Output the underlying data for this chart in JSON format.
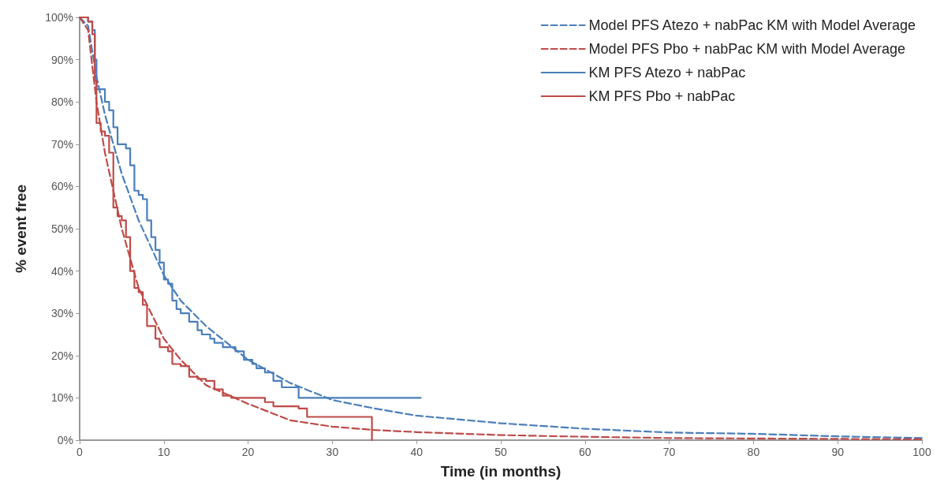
{
  "chart_data": {
    "type": "line",
    "xlabel": "Time (in months)",
    "ylabel": "% event free",
    "xlim": [
      0,
      100
    ],
    "xticks": [
      0,
      10,
      20,
      30,
      40,
      50,
      60,
      70,
      80,
      90,
      100
    ],
    "ylim": [
      0,
      100
    ],
    "yticks": [
      {
        "value": 0,
        "label": "0%"
      },
      {
        "value": 10,
        "label": "10%"
      },
      {
        "value": 20,
        "label": "20%"
      },
      {
        "value": 30,
        "label": "30%"
      },
      {
        "value": 40,
        "label": "40%"
      },
      {
        "value": 50,
        "label": "50%"
      },
      {
        "value": 60,
        "label": "60%"
      },
      {
        "value": 70,
        "label": "70%"
      },
      {
        "value": 80,
        "label": "80%"
      },
      {
        "value": 90,
        "label": "90%"
      },
      {
        "value": 100,
        "label": "100%"
      }
    ],
    "grid": false,
    "legend": "top right",
    "marker": "none",
    "series": [
      {
        "name": "Model PFS Atezo + nabPac KM with Model Average",
        "line_style": "dashed",
        "color": "#4a7ebb",
        "x": [
          0,
          1,
          2,
          3,
          5,
          7,
          10,
          12,
          15,
          20,
          25,
          30,
          35,
          40,
          50,
          60,
          70,
          80,
          90,
          100
        ],
        "values": [
          100,
          98,
          86,
          77,
          63,
          52,
          39,
          33,
          27,
          19,
          13.5,
          9.5,
          7.5,
          5.8,
          4.0,
          2.7,
          1.8,
          1.5,
          0.9,
          0.5
        ]
      },
      {
        "name": "Model PFS Pbo + nabPac KM with Model Average",
        "line_style": "dashed",
        "color": "#be4b48",
        "x": [
          0,
          1,
          2,
          3,
          5,
          7,
          10,
          12,
          15,
          20,
          25,
          30,
          35,
          40,
          50,
          60,
          70,
          80,
          90,
          100
        ],
        "values": [
          100,
          97,
          80,
          68,
          50,
          36,
          24,
          19,
          13,
          8.6,
          4.7,
          3.2,
          2.4,
          1.9,
          1.2,
          0.8,
          0.5,
          0.4,
          0.3,
          0.2
        ]
      },
      {
        "name": "KM PFS Atezo + nabPac",
        "type": "step",
        "line_style": "solid",
        "color": "#4a7ebb",
        "x": [
          0,
          1,
          1.5,
          1.8,
          2,
          3,
          3.5,
          4,
          4.5,
          5.5,
          6,
          6.5,
          7,
          7.5,
          8,
          8.5,
          9,
          9.5,
          10,
          10.5,
          11,
          11.5,
          12,
          13,
          14,
          14.5,
          15.5,
          16,
          17,
          18.5,
          19.5,
          20.5,
          21,
          22,
          23,
          24,
          26,
          40.5
        ],
        "values": [
          100,
          99,
          97,
          90,
          83,
          80,
          78,
          74,
          70,
          69,
          65,
          59,
          58,
          57,
          52,
          48,
          45,
          42,
          38,
          37,
          33,
          31,
          30,
          28,
          26,
          25,
          24,
          23,
          22,
          21,
          19,
          18,
          17,
          16,
          14,
          12.5,
          10,
          10
        ]
      },
      {
        "name": "KM PFS Pbo + nabPac",
        "type": "step",
        "line_style": "solid",
        "color": "#be4b48",
        "x": [
          0,
          1,
          1.5,
          1.8,
          2,
          2.5,
          3,
          3.5,
          4,
          4.5,
          5,
          5.5,
          6,
          6.5,
          7,
          7.5,
          8,
          9,
          9.5,
          10.5,
          11,
          12,
          13,
          14,
          15,
          16,
          17,
          18,
          22,
          23,
          26,
          27,
          34.7,
          34.7
        ],
        "values": [
          100,
          99,
          96,
          85,
          75,
          73,
          72,
          68,
          55,
          53,
          52,
          48,
          40,
          36,
          35,
          32,
          27,
          24,
          22,
          21,
          18,
          17.5,
          15,
          14.5,
          14,
          12,
          10.5,
          10,
          9,
          8,
          7.5,
          5.5,
          5.5,
          0
        ]
      }
    ]
  }
}
